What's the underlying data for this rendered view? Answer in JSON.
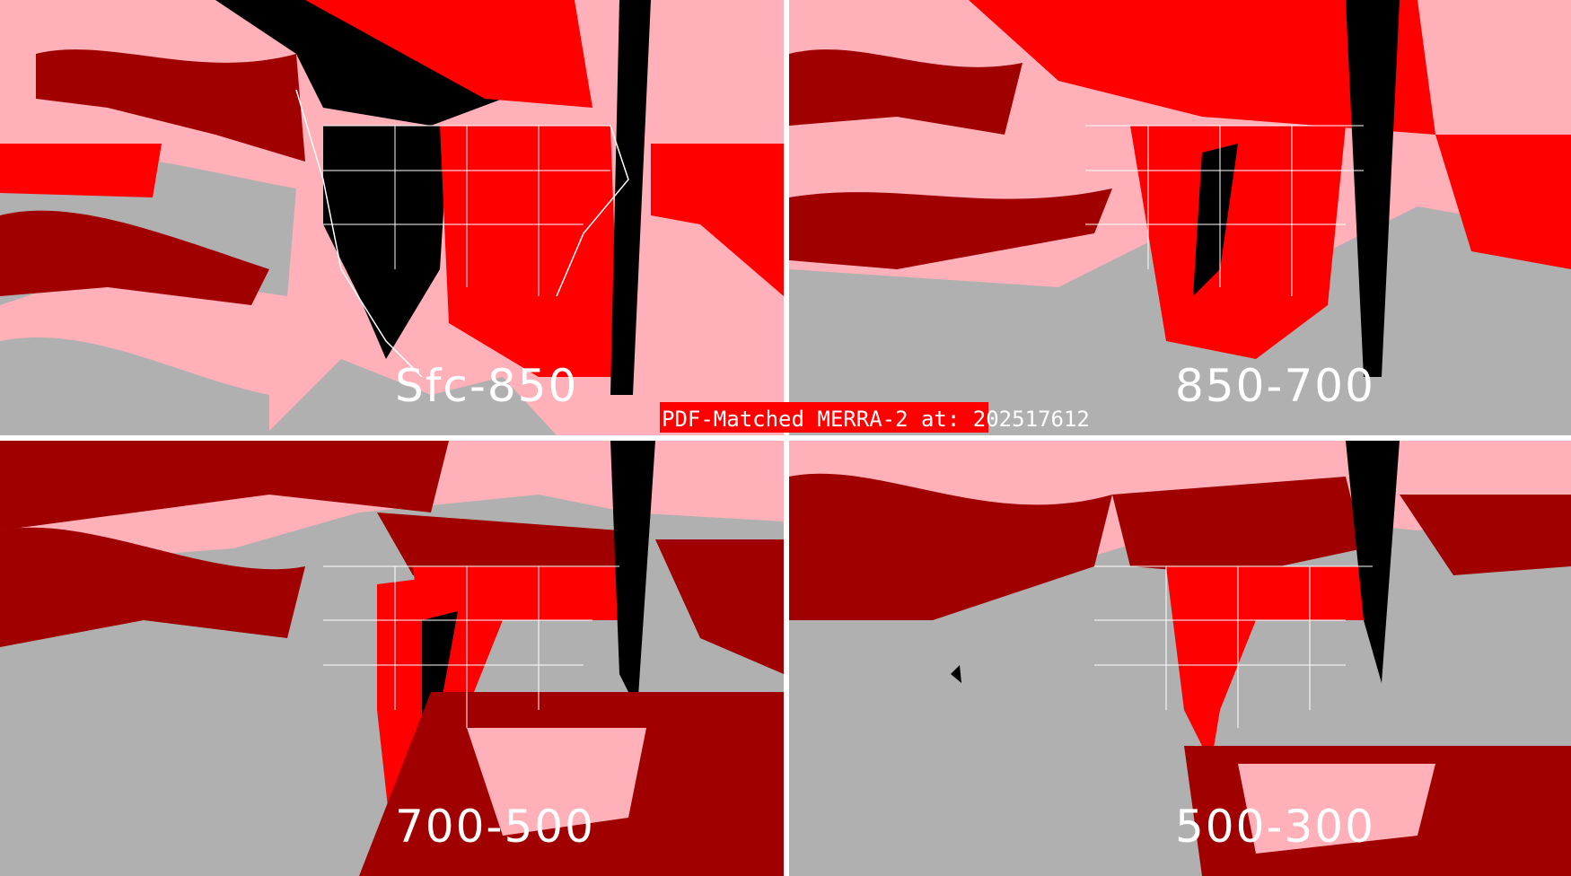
{
  "title": "PDF-Matched MERRA-2 at: 202517612",
  "panels": [
    {
      "label": "Sfc-850"
    },
    {
      "label": "850-700"
    },
    {
      "label": "700-500"
    },
    {
      "label": "500-300"
    }
  ],
  "colors": {
    "background_gray": "#b0b0b0",
    "pink": "#ffb0b8",
    "red": "#ff0000",
    "dark_red": "#a00000",
    "gray_red": "#a07070",
    "black": "#000000",
    "boundaries": "#ffffff",
    "title_box": "#ff0000"
  }
}
